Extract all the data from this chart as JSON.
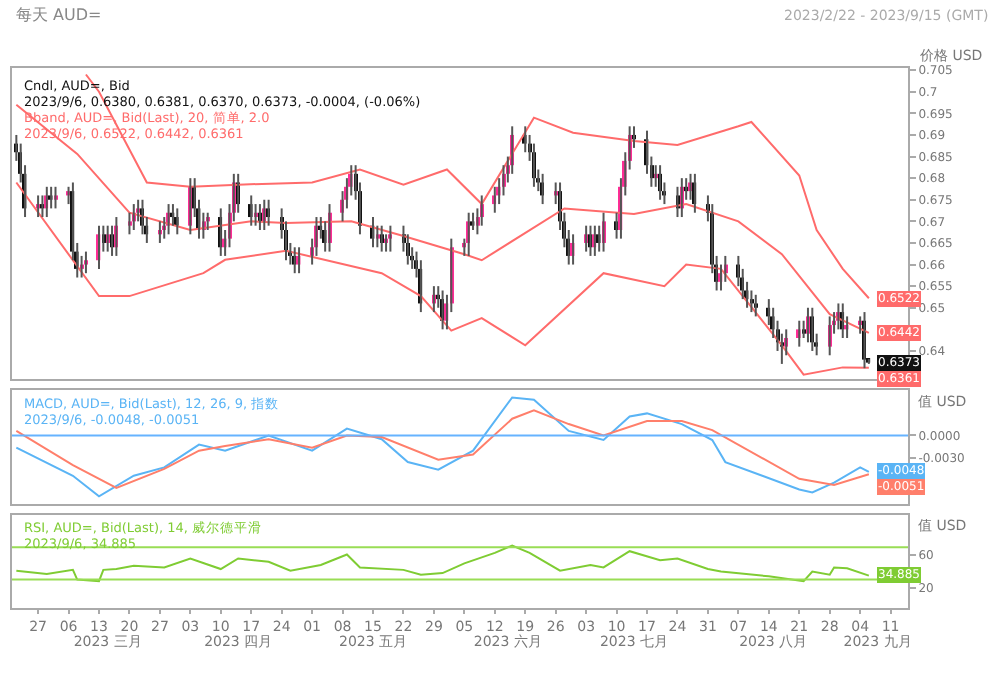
{
  "chart_data": [
    {
      "type": "candlestick",
      "title": "每天 AUD=",
      "subtitle": "2023/2/22 - 2023/9/15 (GMT)",
      "ylabel": "价格 USD",
      "annotations": [
        "Cndl, AUD=, Bid",
        "2023/9/6, 0.6380, 0.6381, 0.6370, 0.6373, -0.0004, (-0.06%)",
        "Bband, AUD=, Bid(Last), 20, 简单, 2.0",
        "2023/9/6, 0.6522, 0.6442, 0.6361"
      ],
      "colors": [
        "#111111",
        "#111111",
        "#111111",
        "#ff2d96",
        "#111111",
        "#ff2d96",
        "#111111",
        "#ff2d96",
        "#ff2d96",
        "#111111",
        "#111111",
        "#ff2d96",
        "#ff2d96",
        "#ff2d96",
        "#111111",
        "#ff2d96",
        "#111111",
        "#ff2d96",
        "#ff2d96",
        "#ff2d96",
        "#ff2d96",
        "#111111",
        "#111111",
        "#ff2d96",
        "#ff2d96",
        "#ff2d96",
        "#111111",
        "#111111",
        "#ff2d96",
        "#111111",
        "#111111",
        "#ff2d96",
        "#ff2d96",
        "#111111",
        "#ff2d96",
        "#ff2d96",
        "#ff2d96",
        "#111111",
        "#111111",
        "#ff2d96",
        "#111111",
        "#ff2d96",
        "#111111",
        "#111111",
        "#111111",
        "#111111",
        "#111111",
        "#ff2d96",
        "#ff2d96",
        "#ff2d96",
        "#111111",
        "#111111",
        "#ff2d96",
        "#ff2d96",
        "#ff2d96",
        "#ff2d96",
        "#111111",
        "#111111",
        "#111111",
        "#ff2d96",
        "#111111",
        "#ff2d96",
        "#ff2d96",
        "#111111",
        "#111111",
        "#111111",
        "#111111",
        "#111111",
        "#ff2d96",
        "#111111",
        "#111111",
        "#ff2d96",
        "#ff2d96",
        "#ff2d96",
        "#ff2d96",
        "#111111",
        "#ff2d96",
        "#ff2d96",
        "#ff2d96",
        "#ff2d96",
        "#ff2d96",
        "#ff2d96",
        "#ff2d96",
        "#111111",
        "#111111",
        "#111111",
        "#111111",
        "#111111",
        "#ff2d96",
        "#111111",
        "#111111",
        "#111111",
        "#ff2d96",
        "#ff2d96",
        "#111111",
        "#ff2d96",
        "#111111",
        "#ff2d96",
        "#111111",
        "#ff2d96",
        "#ff2d96",
        "#ff2d96",
        "#111111",
        "#111111",
        "#111111",
        "#ff2d96",
        "#111111",
        "#111111",
        "#111111",
        "#ff2d96",
        "#111111",
        "#ff2d96",
        "#111111",
        "#111111",
        "#111111",
        "#111111",
        "#ff2d96",
        "#ff2d96",
        "#111111",
        "#111111",
        "#111111",
        "#111111",
        "#111111",
        "#111111",
        "#111111",
        "#111111",
        "#111111",
        "#ff2d96",
        "#ff2d96",
        "#111111",
        "#ff2d96",
        "#111111",
        "#111111",
        "#ff2d96",
        "#ff2d96",
        "#ff2d96",
        "#111111",
        "#ff2d96",
        "#ff2d96",
        "#111111",
        "#111111"
      ],
      "x": [
        "2023-02-22",
        "2023-02-23",
        "2023-02-24",
        "2023-02-27",
        "2023-02-28",
        "2023-03-01",
        "2023-03-02",
        "2023-03-03",
        "2023-03-06",
        "2023-03-07",
        "2023-03-08",
        "2023-03-09",
        "2023-03-10",
        "2023-03-13",
        "2023-03-14",
        "2023-03-15",
        "2023-03-16",
        "2023-03-17",
        "2023-03-20",
        "2023-03-21",
        "2023-03-22",
        "2023-03-23",
        "2023-03-24",
        "2023-03-27",
        "2023-03-28",
        "2023-03-29",
        "2023-03-30",
        "2023-03-31",
        "2023-04-03",
        "2023-04-04",
        "2023-04-05",
        "2023-04-06",
        "2023-04-07",
        "2023-04-10",
        "2023-04-11",
        "2023-04-12",
        "2023-04-13",
        "2023-04-14",
        "2023-04-17",
        "2023-04-18",
        "2023-04-19",
        "2023-04-20",
        "2023-04-21",
        "2023-04-24",
        "2023-04-25",
        "2023-04-26",
        "2023-04-27",
        "2023-04-28",
        "2023-05-01",
        "2023-05-02",
        "2023-05-03",
        "2023-05-04",
        "2023-05-05",
        "2023-05-08",
        "2023-05-09",
        "2023-05-10",
        "2023-05-11",
        "2023-05-12",
        "2023-05-15",
        "2023-05-16",
        "2023-05-17",
        "2023-05-18",
        "2023-05-19",
        "2023-05-22",
        "2023-05-23",
        "2023-05-24",
        "2023-05-25",
        "2023-05-26",
        "2023-05-29",
        "2023-05-30",
        "2023-05-31",
        "2023-06-01",
        "2023-06-02",
        "2023-06-05",
        "2023-06-06",
        "2023-06-07",
        "2023-06-08",
        "2023-06-09",
        "2023-06-12",
        "2023-06-13",
        "2023-06-14",
        "2023-06-15",
        "2023-06-16",
        "2023-06-19",
        "2023-06-20",
        "2023-06-21",
        "2023-06-22",
        "2023-06-23",
        "2023-06-26",
        "2023-06-27",
        "2023-06-28",
        "2023-06-29",
        "2023-06-30",
        "2023-07-03",
        "2023-07-04",
        "2023-07-05",
        "2023-07-06",
        "2023-07-07",
        "2023-07-10",
        "2023-07-11",
        "2023-07-12",
        "2023-07-13",
        "2023-07-14",
        "2023-07-17",
        "2023-07-18",
        "2023-07-19",
        "2023-07-20",
        "2023-07-21",
        "2023-07-24",
        "2023-07-25",
        "2023-07-26",
        "2023-07-27",
        "2023-07-28",
        "2023-07-31",
        "2023-08-01",
        "2023-08-02",
        "2023-08-03",
        "2023-08-04",
        "2023-08-07",
        "2023-08-08",
        "2023-08-09",
        "2023-08-10",
        "2023-08-11",
        "2023-08-14",
        "2023-08-15",
        "2023-08-16",
        "2023-08-17",
        "2023-08-18",
        "2023-08-21",
        "2023-08-22",
        "2023-08-23",
        "2023-08-24",
        "2023-08-25",
        "2023-08-28",
        "2023-08-29",
        "2023-08-30",
        "2023-08-31",
        "2023-09-01",
        "2023-09-04",
        "2023-09-05",
        "2023-09-06"
      ],
      "ohlc": [
        [
          0.688,
          0.69,
          0.684,
          0.686
        ],
        [
          0.686,
          0.688,
          0.679,
          0.681
        ],
        [
          0.681,
          0.683,
          0.671,
          0.673
        ],
        [
          0.673,
          0.676,
          0.671,
          0.674
        ],
        [
          0.674,
          0.676,
          0.671,
          0.673
        ],
        [
          0.673,
          0.678,
          0.671,
          0.676
        ],
        [
          0.676,
          0.678,
          0.673,
          0.675
        ],
        [
          0.675,
          0.678,
          0.673,
          0.676
        ],
        [
          0.676,
          0.678,
          0.674,
          0.677
        ],
        [
          0.677,
          0.679,
          0.661,
          0.663
        ],
        [
          0.663,
          0.665,
          0.657,
          0.659
        ],
        [
          0.659,
          0.662,
          0.657,
          0.66
        ],
        [
          0.66,
          0.663,
          0.658,
          0.661
        ],
        [
          0.661,
          0.669,
          0.659,
          0.667
        ],
        [
          0.667,
          0.669,
          0.663,
          0.665
        ],
        [
          0.665,
          0.669,
          0.663,
          0.667
        ],
        [
          0.667,
          0.669,
          0.662,
          0.664
        ],
        [
          0.664,
          0.671,
          0.662,
          0.669
        ],
        [
          0.669,
          0.672,
          0.667,
          0.67
        ],
        [
          0.67,
          0.674,
          0.668,
          0.672
        ],
        [
          0.672,
          0.675,
          0.67,
          0.673
        ],
        [
          0.673,
          0.675,
          0.667,
          0.669
        ],
        [
          0.669,
          0.671,
          0.665,
          0.667
        ],
        [
          0.667,
          0.67,
          0.665,
          0.668
        ],
        [
          0.668,
          0.671,
          0.666,
          0.669
        ],
        [
          0.669,
          0.674,
          0.667,
          0.672
        ],
        [
          0.672,
          0.674,
          0.669,
          0.671
        ],
        [
          0.671,
          0.673,
          0.667,
          0.669
        ],
        [
          0.669,
          0.68,
          0.667,
          0.678
        ],
        [
          0.678,
          0.68,
          0.671,
          0.673
        ],
        [
          0.673,
          0.675,
          0.666,
          0.668
        ],
        [
          0.668,
          0.672,
          0.666,
          0.67
        ],
        [
          0.67,
          0.672,
          0.668,
          0.671
        ],
        [
          0.671,
          0.673,
          0.662,
          0.664
        ],
        [
          0.664,
          0.668,
          0.662,
          0.666
        ],
        [
          0.666,
          0.674,
          0.664,
          0.672
        ],
        [
          0.672,
          0.681,
          0.67,
          0.679
        ],
        [
          0.679,
          0.681,
          0.672,
          0.674
        ],
        [
          0.674,
          0.676,
          0.669,
          0.671
        ],
        [
          0.671,
          0.674,
          0.669,
          0.672
        ],
        [
          0.672,
          0.674,
          0.668,
          0.67
        ],
        [
          0.67,
          0.675,
          0.668,
          0.673
        ],
        [
          0.673,
          0.675,
          0.669,
          0.671
        ],
        [
          0.671,
          0.673,
          0.666,
          0.668
        ],
        [
          0.668,
          0.67,
          0.661,
          0.663
        ],
        [
          0.663,
          0.665,
          0.66,
          0.662
        ],
        [
          0.662,
          0.664,
          0.658,
          0.66
        ],
        [
          0.66,
          0.664,
          0.658,
          0.662
        ],
        [
          0.662,
          0.666,
          0.66,
          0.664
        ],
        [
          0.664,
          0.671,
          0.662,
          0.669
        ],
        [
          0.669,
          0.671,
          0.666,
          0.668
        ],
        [
          0.668,
          0.67,
          0.663,
          0.665
        ],
        [
          0.665,
          0.674,
          0.663,
          0.672
        ],
        [
          0.672,
          0.677,
          0.67,
          0.675
        ],
        [
          0.675,
          0.68,
          0.673,
          0.678
        ],
        [
          0.678,
          0.683,
          0.676,
          0.681
        ],
        [
          0.681,
          0.683,
          0.675,
          0.677
        ],
        [
          0.677,
          0.679,
          0.667,
          0.669
        ],
        [
          0.669,
          0.671,
          0.664,
          0.666
        ],
        [
          0.666,
          0.669,
          0.664,
          0.667
        ],
        [
          0.667,
          0.669,
          0.663,
          0.665
        ],
        [
          0.665,
          0.667,
          0.663,
          0.666
        ],
        [
          0.666,
          0.669,
          0.663,
          0.667
        ],
        [
          0.667,
          0.669,
          0.663,
          0.665
        ],
        [
          0.665,
          0.667,
          0.66,
          0.662
        ],
        [
          0.662,
          0.664,
          0.659,
          0.661
        ],
        [
          0.661,
          0.663,
          0.657,
          0.659
        ],
        [
          0.659,
          0.661,
          0.649,
          0.651
        ],
        [
          0.651,
          0.655,
          0.649,
          0.653
        ],
        [
          0.653,
          0.655,
          0.65,
          0.652
        ],
        [
          0.652,
          0.654,
          0.645,
          0.647
        ],
        [
          0.647,
          0.653,
          0.645,
          0.651
        ],
        [
          0.651,
          0.666,
          0.649,
          0.664
        ],
        [
          0.664,
          0.666,
          0.662,
          0.665
        ],
        [
          0.665,
          0.672,
          0.662,
          0.67
        ],
        [
          0.67,
          0.672,
          0.668,
          0.669
        ],
        [
          0.669,
          0.673,
          0.667,
          0.671
        ],
        [
          0.671,
          0.676,
          0.669,
          0.674
        ],
        [
          0.674,
          0.678,
          0.672,
          0.676
        ],
        [
          0.676,
          0.68,
          0.674,
          0.678
        ],
        [
          0.678,
          0.683,
          0.676,
          0.681
        ],
        [
          0.681,
          0.685,
          0.679,
          0.683
        ],
        [
          0.683,
          0.692,
          0.681,
          0.69
        ],
        [
          0.69,
          0.692,
          0.686,
          0.688
        ],
        [
          0.688,
          0.69,
          0.684,
          0.686
        ],
        [
          0.686,
          0.688,
          0.678,
          0.68
        ],
        [
          0.68,
          0.682,
          0.677,
          0.679
        ],
        [
          0.679,
          0.681,
          0.674,
          0.676
        ],
        [
          0.676,
          0.679,
          0.674,
          0.677
        ],
        [
          0.677,
          0.679,
          0.668,
          0.67
        ],
        [
          0.67,
          0.672,
          0.664,
          0.666
        ],
        [
          0.666,
          0.668,
          0.66,
          0.662
        ],
        [
          0.662,
          0.667,
          0.66,
          0.665
        ],
        [
          0.665,
          0.669,
          0.663,
          0.667
        ],
        [
          0.667,
          0.669,
          0.662,
          0.664
        ],
        [
          0.664,
          0.669,
          0.662,
          0.667
        ],
        [
          0.667,
          0.669,
          0.663,
          0.665
        ],
        [
          0.665,
          0.672,
          0.663,
          0.67
        ],
        [
          0.67,
          0.672,
          0.666,
          0.668
        ],
        [
          0.668,
          0.68,
          0.666,
          0.678
        ],
        [
          0.678,
          0.686,
          0.676,
          0.684
        ],
        [
          0.684,
          0.692,
          0.682,
          0.69
        ],
        [
          0.69,
          0.692,
          0.687,
          0.689
        ],
        [
          0.689,
          0.691,
          0.681,
          0.683
        ],
        [
          0.683,
          0.685,
          0.678,
          0.68
        ],
        [
          0.68,
          0.683,
          0.678,
          0.681
        ],
        [
          0.681,
          0.683,
          0.675,
          0.677
        ],
        [
          0.677,
          0.679,
          0.674,
          0.676
        ],
        [
          0.676,
          0.678,
          0.671,
          0.673
        ],
        [
          0.673,
          0.68,
          0.671,
          0.678
        ],
        [
          0.678,
          0.68,
          0.675,
          0.677
        ],
        [
          0.677,
          0.681,
          0.675,
          0.679
        ],
        [
          0.679,
          0.681,
          0.672,
          0.674
        ],
        [
          0.674,
          0.676,
          0.67,
          0.672
        ],
        [
          0.672,
          0.674,
          0.658,
          0.66
        ],
        [
          0.66,
          0.662,
          0.654,
          0.656
        ],
        [
          0.656,
          0.66,
          0.654,
          0.658
        ],
        [
          0.658,
          0.662,
          0.656,
          0.66
        ],
        [
          0.66,
          0.662,
          0.655,
          0.657
        ],
        [
          0.657,
          0.659,
          0.652,
          0.654
        ],
        [
          0.654,
          0.656,
          0.65,
          0.652
        ],
        [
          0.652,
          0.654,
          0.649,
          0.651
        ],
        [
          0.651,
          0.653,
          0.648,
          0.65
        ],
        [
          0.65,
          0.652,
          0.646,
          0.648
        ],
        [
          0.648,
          0.65,
          0.643,
          0.645
        ],
        [
          0.645,
          0.647,
          0.64,
          0.642
        ],
        [
          0.642,
          0.644,
          0.637,
          0.641
        ],
        [
          0.641,
          0.645,
          0.639,
          0.643
        ],
        [
          0.643,
          0.647,
          0.641,
          0.645
        ],
        [
          0.645,
          0.647,
          0.643,
          0.644
        ],
        [
          0.644,
          0.65,
          0.642,
          0.648
        ],
        [
          0.648,
          0.65,
          0.64,
          0.642
        ],
        [
          0.642,
          0.644,
          0.639,
          0.641
        ],
        [
          0.641,
          0.648,
          0.639,
          0.646
        ],
        [
          0.646,
          0.649,
          0.644,
          0.647
        ],
        [
          0.647,
          0.651,
          0.645,
          0.649
        ],
        [
          0.649,
          0.651,
          0.643,
          0.645
        ],
        [
          0.645,
          0.648,
          0.643,
          0.646
        ],
        [
          0.646,
          0.648,
          0.644,
          0.647
        ],
        [
          0.647,
          0.649,
          0.636,
          0.638
        ],
        [
          0.638,
          0.6381,
          0.637,
          0.6373
        ]
      ],
      "value_labels": [
        null,
        null,
        null,
        null,
        null,
        null,
        null,
        null,
        null,
        null,
        null,
        null,
        null,
        null,
        null,
        null,
        null,
        null,
        null,
        null,
        null,
        null,
        null,
        null,
        null,
        null,
        null,
        null,
        null,
        null,
        null,
        null,
        null,
        null,
        null,
        null,
        null,
        null,
        null,
        null,
        null,
        null,
        null,
        null,
        null,
        null,
        null,
        null,
        null,
        null,
        null,
        null,
        null,
        null,
        null,
        null,
        null,
        null,
        null,
        null,
        null,
        null,
        null,
        null,
        null,
        null,
        null,
        null,
        null,
        null,
        null,
        null,
        null,
        null,
        null,
        null,
        null,
        null,
        null,
        null,
        null,
        null,
        null,
        null,
        null,
        null,
        null,
        null,
        null,
        null,
        null,
        null,
        null,
        null,
        null,
        null,
        null,
        null,
        null,
        null,
        null,
        null,
        null,
        null,
        null,
        null,
        null,
        null,
        null,
        null,
        null,
        null,
        null,
        null,
        null,
        null,
        null,
        null,
        null,
        null,
        null,
        null,
        null,
        null,
        null,
        null,
        null,
        null,
        null,
        null,
        null,
        null,
        null,
        null,
        null,
        null,
        null,
        null,
        null,
        null,
        "0.6373"
      ],
      "series": [
        {
          "type": "line",
          "color": "#ff6b6b",
          "x": [
            "2023-03-10",
            "2023-03-13",
            "2023-03-24",
            "2023-04-03",
            "2023-04-14",
            "2023-05-01",
            "2023-05-12",
            "2023-05-22",
            "2023-06-01",
            "2023-06-09",
            "2023-06-21",
            "2023-06-30",
            "2023-07-14",
            "2023-07-24",
            "2023-08-07",
            "2023-08-10",
            "2023-08-21",
            "2023-08-25",
            "2023-08-31",
            "2023-09-06"
          ],
          "values": [
            0.704,
            0.7,
            0.679,
            0.678,
            0.6785,
            0.679,
            0.682,
            0.6785,
            0.682,
            0.674,
            0.694,
            0.6905,
            0.6886,
            0.6877,
            0.692,
            0.693,
            0.6806,
            0.668,
            0.659,
            0.6522
          ],
          "value_labels": [
            null,
            null,
            null,
            null,
            null,
            null,
            null,
            null,
            null,
            null,
            null,
            null,
            null,
            null,
            null,
            null,
            null,
            null,
            null,
            "0.6522"
          ]
        },
        {
          "type": "line",
          "color": "#ff6b6b",
          "x": [
            "2023-02-22",
            "2023-03-08",
            "2023-03-20",
            "2023-04-03",
            "2023-04-17",
            "2023-04-25",
            "2023-05-10",
            "2023-05-22",
            "2023-06-05",
            "2023-06-09",
            "2023-06-28",
            "2023-07-14",
            "2023-07-26",
            "2023-08-07",
            "2023-08-17",
            "2023-08-28",
            "2023-09-06"
          ],
          "values": [
            0.697,
            0.6856,
            0.672,
            0.668,
            0.67,
            0.6696,
            0.67,
            0.6666,
            0.6624,
            0.661,
            0.673,
            0.6717,
            0.674,
            0.67,
            0.6624,
            0.6485,
            0.6442
          ],
          "value_labels": [
            null,
            null,
            null,
            null,
            null,
            null,
            null,
            null,
            null,
            null,
            null,
            null,
            null,
            null,
            null,
            null,
            "0.6442"
          ]
        },
        {
          "type": "line",
          "color": "#ff6b6b",
          "x": [
            "2023-02-22",
            "2023-03-13",
            "2023-03-20",
            "2023-04-06",
            "2023-04-11",
            "2023-04-25",
            "2023-05-17",
            "2023-05-26",
            "2023-06-02",
            "2023-06-09",
            "2023-06-19",
            "2023-07-07",
            "2023-07-21",
            "2023-07-26",
            "2023-08-03",
            "2023-08-17",
            "2023-08-22",
            "2023-08-31",
            "2023-09-06"
          ],
          "values": [
            0.679,
            0.6527,
            0.6527,
            0.658,
            0.6611,
            0.6632,
            0.658,
            0.6527,
            0.6447,
            0.6476,
            0.6413,
            0.658,
            0.655,
            0.66,
            0.659,
            0.6413,
            0.6345,
            0.6362,
            0.6361
          ],
          "value_labels": [
            null,
            null,
            null,
            null,
            null,
            null,
            null,
            null,
            null,
            null,
            null,
            null,
            null,
            null,
            null,
            null,
            null,
            null,
            "0.6361"
          ]
        }
      ],
      "xlim": [
        "2023-02-21",
        "2023-09-15"
      ],
      "ylim": [
        0.6335,
        0.7055
      ],
      "yticks": [
        0.64,
        0.65,
        0.655,
        0.66,
        0.665,
        0.67,
        0.675,
        0.68,
        0.685,
        0.69,
        0.695,
        0.7,
        0.705
      ],
      "tick_labels": "y"
    },
    {
      "type": "line",
      "ylabel": "值 USD",
      "annotations": [
        "MACD, AUD=, Bid(Last), 12, 26, 9, 指数",
        "2023/9/6, -0.0048, -0.0051"
      ],
      "series": [
        {
          "color": "#5ab4f5",
          "x": [
            "2023-02-22",
            "2023-03-07",
            "2023-03-13",
            "2023-03-21",
            "2023-03-28",
            "2023-04-05",
            "2023-04-11",
            "2023-04-21",
            "2023-05-01",
            "2023-05-09",
            "2023-05-17",
            "2023-05-23",
            "2023-05-30",
            "2023-06-07",
            "2023-06-16",
            "2023-06-21",
            "2023-06-29",
            "2023-07-07",
            "2023-07-13",
            "2023-07-17",
            "2023-07-25",
            "2023-08-01",
            "2023-08-04",
            "2023-08-21",
            "2023-08-24",
            "2023-08-29",
            "2023-09-04",
            "2023-09-06"
          ],
          "values": [
            -0.0016,
            -0.0053,
            -0.008,
            -0.0053,
            -0.0042,
            -0.0012,
            -0.002,
            0.0,
            -0.002,
            0.0009,
            -0.0005,
            -0.0035,
            -0.0045,
            -0.002,
            0.005,
            0.0047,
            0.0006,
            -0.0006,
            0.0025,
            0.0029,
            0.0015,
            -0.0006,
            -0.0035,
            -0.0071,
            -0.0075,
            -0.0062,
            -0.0042,
            -0.0048
          ],
          "value_labels": [
            null,
            null,
            null,
            null,
            null,
            null,
            null,
            null,
            null,
            null,
            null,
            null,
            null,
            null,
            null,
            null,
            null,
            null,
            null,
            null,
            null,
            null,
            null,
            null,
            null,
            null,
            null,
            "-0.0048"
          ]
        },
        {
          "color": "#ff7f6b",
          "x": [
            "2023-02-22",
            "2023-03-07",
            "2023-03-17",
            "2023-03-28",
            "2023-04-05",
            "2023-04-11",
            "2023-04-21",
            "2023-05-01",
            "2023-05-09",
            "2023-05-17",
            "2023-05-30",
            "2023-06-07",
            "2023-06-16",
            "2023-06-21",
            "2023-06-29",
            "2023-07-07",
            "2023-07-17",
            "2023-07-25",
            "2023-08-01",
            "2023-08-21",
            "2023-08-29",
            "2023-09-06"
          ],
          "values": [
            0.0006,
            -0.0039,
            -0.0069,
            -0.0044,
            -0.002,
            -0.0014,
            -0.0005,
            -0.0016,
            0.0,
            -0.0002,
            -0.0032,
            -0.0025,
            0.0022,
            0.0033,
            0.0015,
            0.0,
            0.0019,
            0.0019,
            0.0007,
            -0.0057,
            -0.0065,
            -0.0051
          ],
          "value_labels": [
            null,
            null,
            null,
            null,
            null,
            null,
            null,
            null,
            null,
            null,
            null,
            null,
            null,
            null,
            null,
            null,
            null,
            null,
            null,
            null,
            null,
            "-0.0051"
          ]
        }
      ],
      "ref_lines": [
        {
          "axis": "y",
          "value": 0,
          "color": "#66b3ff"
        }
      ],
      "xlim": [
        "2023-02-21",
        "2023-09-15"
      ],
      "ylim": [
        -0.009,
        0.006
      ],
      "yticks": [
        {
          "value": 0,
          "label": "0.0000"
        },
        {
          "value": -0.003,
          "label": "-0.0030"
        }
      ],
      "tick_labels": "y"
    },
    {
      "type": "line",
      "ylabel": "值 USD",
      "annotations": [
        "RSI, AUD=, Bid(Last), 14, 威尔德平滑",
        "2023/9/6, 34.885"
      ],
      "series": [
        {
          "color": "#7fcc33",
          "x": [
            "2023-02-22",
            "2023-03-01",
            "2023-03-07",
            "2023-03-08",
            "2023-03-13",
            "2023-03-14",
            "2023-03-17",
            "2023-03-21",
            "2023-03-28",
            "2023-04-03",
            "2023-04-10",
            "2023-04-14",
            "2023-04-21",
            "2023-04-26",
            "2023-05-03",
            "2023-05-09",
            "2023-05-12",
            "2023-05-22",
            "2023-05-26",
            "2023-05-31",
            "2023-06-05",
            "2023-06-12",
            "2023-06-16",
            "2023-06-20",
            "2023-06-27",
            "2023-07-04",
            "2023-07-07",
            "2023-07-13",
            "2023-07-20",
            "2023-07-24",
            "2023-07-31",
            "2023-08-03",
            "2023-08-14",
            "2023-08-22",
            "2023-08-24",
            "2023-08-28",
            "2023-08-29",
            "2023-09-01",
            "2023-09-06"
          ],
          "values": [
            41,
            37,
            42,
            30,
            28,
            42,
            43,
            47,
            45,
            56,
            43,
            56,
            52,
            41,
            48,
            61,
            45,
            42,
            36,
            38,
            50,
            63,
            72,
            63,
            41,
            48,
            45,
            65,
            54,
            56,
            43,
            40,
            34,
            28,
            40,
            36,
            45,
            44,
            34.885
          ],
          "value_labels": [
            null,
            null,
            null,
            null,
            null,
            null,
            null,
            null,
            null,
            null,
            null,
            null,
            null,
            null,
            null,
            null,
            null,
            null,
            null,
            null,
            null,
            null,
            null,
            null,
            null,
            null,
            null,
            null,
            null,
            null,
            null,
            null,
            null,
            null,
            null,
            null,
            null,
            null,
            "34.885"
          ]
        }
      ],
      "ref_lines": [
        {
          "axis": "y",
          "value": 70,
          "color": "#99dd55"
        },
        {
          "axis": "y",
          "value": 30,
          "color": "#99dd55"
        }
      ],
      "xlim": [
        "2023-02-21",
        "2023-09-15"
      ],
      "ylim": [
        -5,
        110
      ],
      "yticks": [
        60,
        20
      ],
      "xticks": [
        {
          "value": "2023-02-27",
          "label": "27"
        },
        {
          "value": "2023-03-06",
          "label": "06"
        },
        {
          "value": "2023-03-13",
          "label": "13"
        },
        {
          "value": "2023-03-20",
          "label": "20"
        },
        {
          "value": "2023-03-27",
          "label": "27"
        },
        {
          "value": "2023-04-03",
          "label": "03"
        },
        {
          "value": "2023-04-10",
          "label": "10"
        },
        {
          "value": "2023-04-17",
          "label": "17"
        },
        {
          "value": "2023-04-24",
          "label": "24"
        },
        {
          "value": "2023-05-01",
          "label": "01"
        },
        {
          "value": "2023-05-08",
          "label": "08"
        },
        {
          "value": "2023-05-15",
          "label": "15"
        },
        {
          "value": "2023-05-22",
          "label": "22"
        },
        {
          "value": "2023-05-29",
          "label": "29"
        },
        {
          "value": "2023-06-05",
          "label": "05"
        },
        {
          "value": "2023-06-12",
          "label": "12"
        },
        {
          "value": "2023-06-19",
          "label": "19"
        },
        {
          "value": "2023-06-26",
          "label": "26"
        },
        {
          "value": "2023-07-03",
          "label": "03"
        },
        {
          "value": "2023-07-10",
          "label": "10"
        },
        {
          "value": "2023-07-17",
          "label": "17"
        },
        {
          "value": "2023-07-24",
          "label": "24"
        },
        {
          "value": "2023-07-31",
          "label": "31"
        },
        {
          "value": "2023-08-07",
          "label": "07"
        },
        {
          "value": "2023-08-14",
          "label": "14"
        },
        {
          "value": "2023-08-21",
          "label": "21"
        },
        {
          "value": "2023-08-28",
          "label": "28"
        },
        {
          "value": "2023-09-04",
          "label": "04"
        },
        {
          "value": "2023-09-11",
          "label": "11"
        }
      ],
      "x2lim": [
        "2023-02-21",
        "2023-09-15"
      ],
      "x2ticks": [
        {
          "value": "2023-03-15",
          "label": "2023 三月"
        },
        {
          "value": "2023-04-14",
          "label": "2023 四月"
        },
        {
          "value": "2023-05-15",
          "label": "2023 五月"
        },
        {
          "value": "2023-06-15",
          "label": "2023 六月"
        },
        {
          "value": "2023-07-14",
          "label": "2023 七月"
        },
        {
          "value": "2023-08-15",
          "label": "2023 八月"
        },
        {
          "value": "2023-09-08",
          "label": "2023 九月"
        }
      ]
    }
  ]
}
